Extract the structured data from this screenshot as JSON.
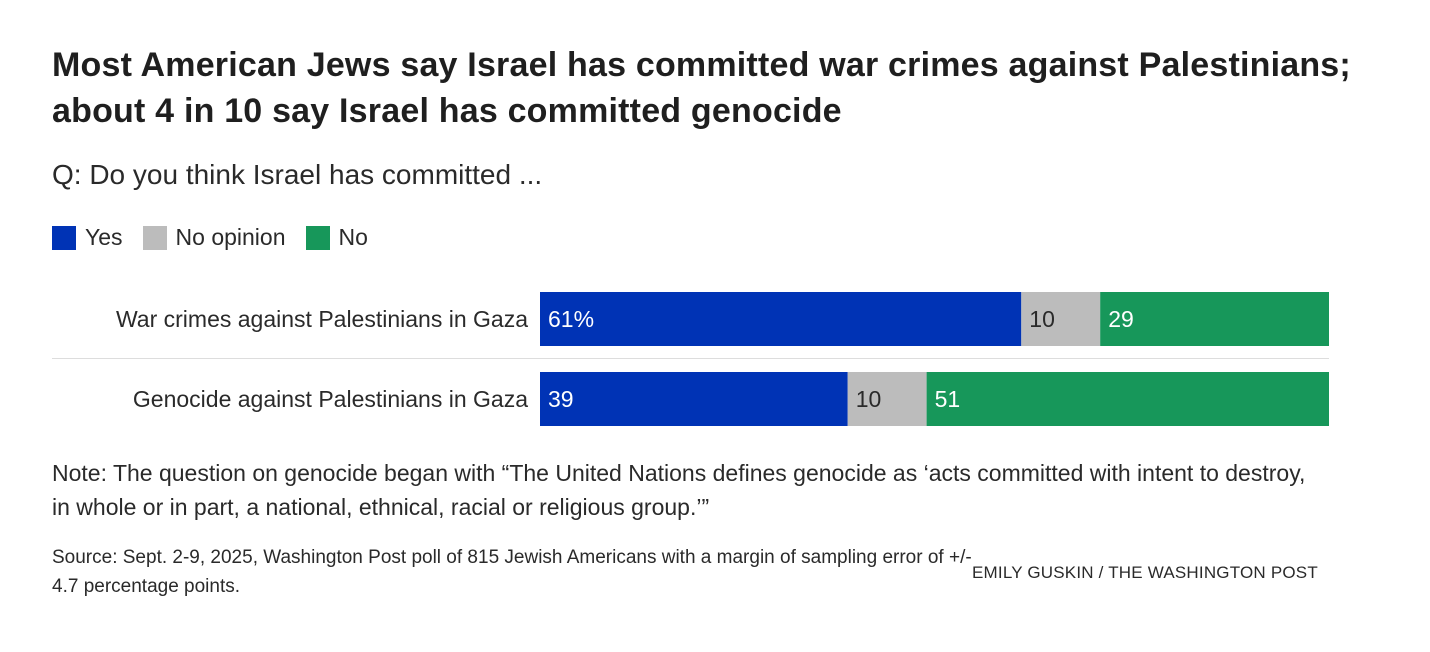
{
  "chart_data": {
    "type": "bar",
    "orientation": "horizontal",
    "stacked": true,
    "title": "Most American Jews say Israel has committed war crimes against Palestinians; about 4 in 10 say Israel has committed genocide",
    "subtitle": "Q: Do you think Israel has committed ...",
    "categories": [
      "War crimes against Palestinians in Gaza",
      "Genocide against Palestinians in Gaza"
    ],
    "series": [
      {
        "name": "Yes",
        "color": "#0033b5",
        "values": [
          61,
          39
        ],
        "labels": [
          "61%",
          "39"
        ],
        "label_color": "#ffffff"
      },
      {
        "name": "No opinion",
        "color": "#bcbcbc",
        "values": [
          10,
          10
        ],
        "labels": [
          "10",
          "10"
        ],
        "label_color": "#2a2a2a"
      },
      {
        "name": "No",
        "color": "#17975a",
        "values": [
          29,
          51
        ],
        "labels": [
          "29",
          "51"
        ],
        "label_color": "#ffffff"
      }
    ],
    "xlim": [
      0,
      100
    ],
    "legend_position": "top-left",
    "grid": false
  },
  "note": "Note: The question on genocide began with “The United Nations defines genocide as ‘acts committed with intent to destroy, in whole or in part, a national, ethnical, racial or religious group.’”",
  "source": "Source: Sept. 2-9, 2025, Washington Post poll of 815 Jewish Americans with a margin of sampling error of +/- 4.7 percentage points.",
  "credit": "EMILY GUSKIN / THE WASHINGTON POST"
}
